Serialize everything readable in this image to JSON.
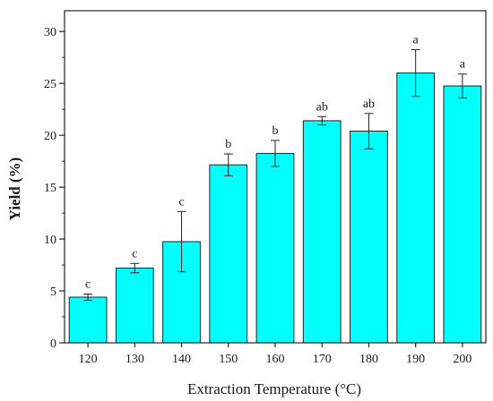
{
  "chart_data": {
    "type": "bar",
    "xlabel": "Extraction Temperature (°C)",
    "ylabel": "Yield (%)",
    "categories": [
      "120",
      "130",
      "140",
      "150",
      "160",
      "170",
      "180",
      "190",
      "200"
    ],
    "values": [
      4.4,
      7.2,
      9.75,
      17.15,
      18.25,
      21.4,
      20.4,
      26.0,
      24.75
    ],
    "errors": [
      0.3,
      0.45,
      2.9,
      1.05,
      1.25,
      0.4,
      1.7,
      2.25,
      1.15
    ],
    "significance": [
      "c",
      "c",
      "c",
      "b",
      "b",
      "ab",
      "ab",
      "a",
      "a"
    ],
    "ylim": [
      0,
      32
    ],
    "yticks": [
      0,
      5,
      10,
      15,
      20,
      25,
      30
    ],
    "bar_color": "#00ffff",
    "grid": false,
    "legend": "none"
  }
}
